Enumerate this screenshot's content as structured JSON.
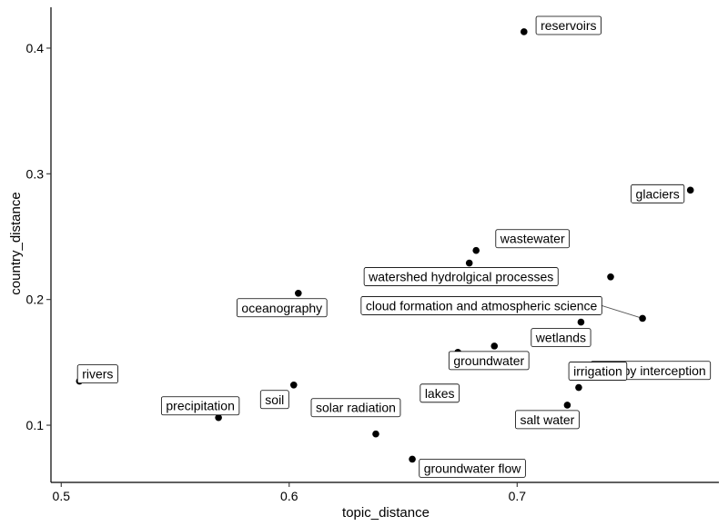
{
  "chart_data": {
    "type": "scatter",
    "xlabel": "topic_distance",
    "ylabel": "country_distance",
    "xlim": [
      0.4955,
      0.7885
    ],
    "ylim": [
      0.0545,
      0.4325
    ],
    "x_ticks": [
      0.5,
      0.6,
      0.7
    ],
    "y_ticks": [
      0.1,
      0.2,
      0.3,
      0.4
    ],
    "grid": false,
    "points": [
      {
        "label": "reservoirs",
        "x": 0.703,
        "y": 0.413
      },
      {
        "label": "glaciers",
        "x": 0.776,
        "y": 0.287
      },
      {
        "label": "wastewater",
        "x": 0.682,
        "y": 0.239
      },
      {
        "label": "watershed hydrolgical processes",
        "x": 0.679,
        "y": 0.229
      },
      {
        "label": "canopy interception",
        "x": 0.741,
        "y": 0.218
      },
      {
        "label": "oceanography",
        "x": 0.604,
        "y": 0.205
      },
      {
        "label": "cloud formation and atmospheric science",
        "x": 0.755,
        "y": 0.185
      },
      {
        "label": "wetlands",
        "x": 0.728,
        "y": 0.182
      },
      {
        "label": "groundwater",
        "x": 0.69,
        "y": 0.163
      },
      {
        "label": "lakes",
        "x": 0.674,
        "y": 0.158
      },
      {
        "label": "rivers",
        "x": 0.508,
        "y": 0.135
      },
      {
        "label": "soil",
        "x": 0.602,
        "y": 0.132
      },
      {
        "label": "irrigation",
        "x": 0.727,
        "y": 0.13
      },
      {
        "label": "salt water",
        "x": 0.722,
        "y": 0.116
      },
      {
        "label": "precipitation",
        "x": 0.569,
        "y": 0.106
      },
      {
        "label": "solar radiation",
        "x": 0.638,
        "y": 0.093
      },
      {
        "label": "groundwater flow",
        "x": 0.654,
        "y": 0.073
      }
    ]
  }
}
